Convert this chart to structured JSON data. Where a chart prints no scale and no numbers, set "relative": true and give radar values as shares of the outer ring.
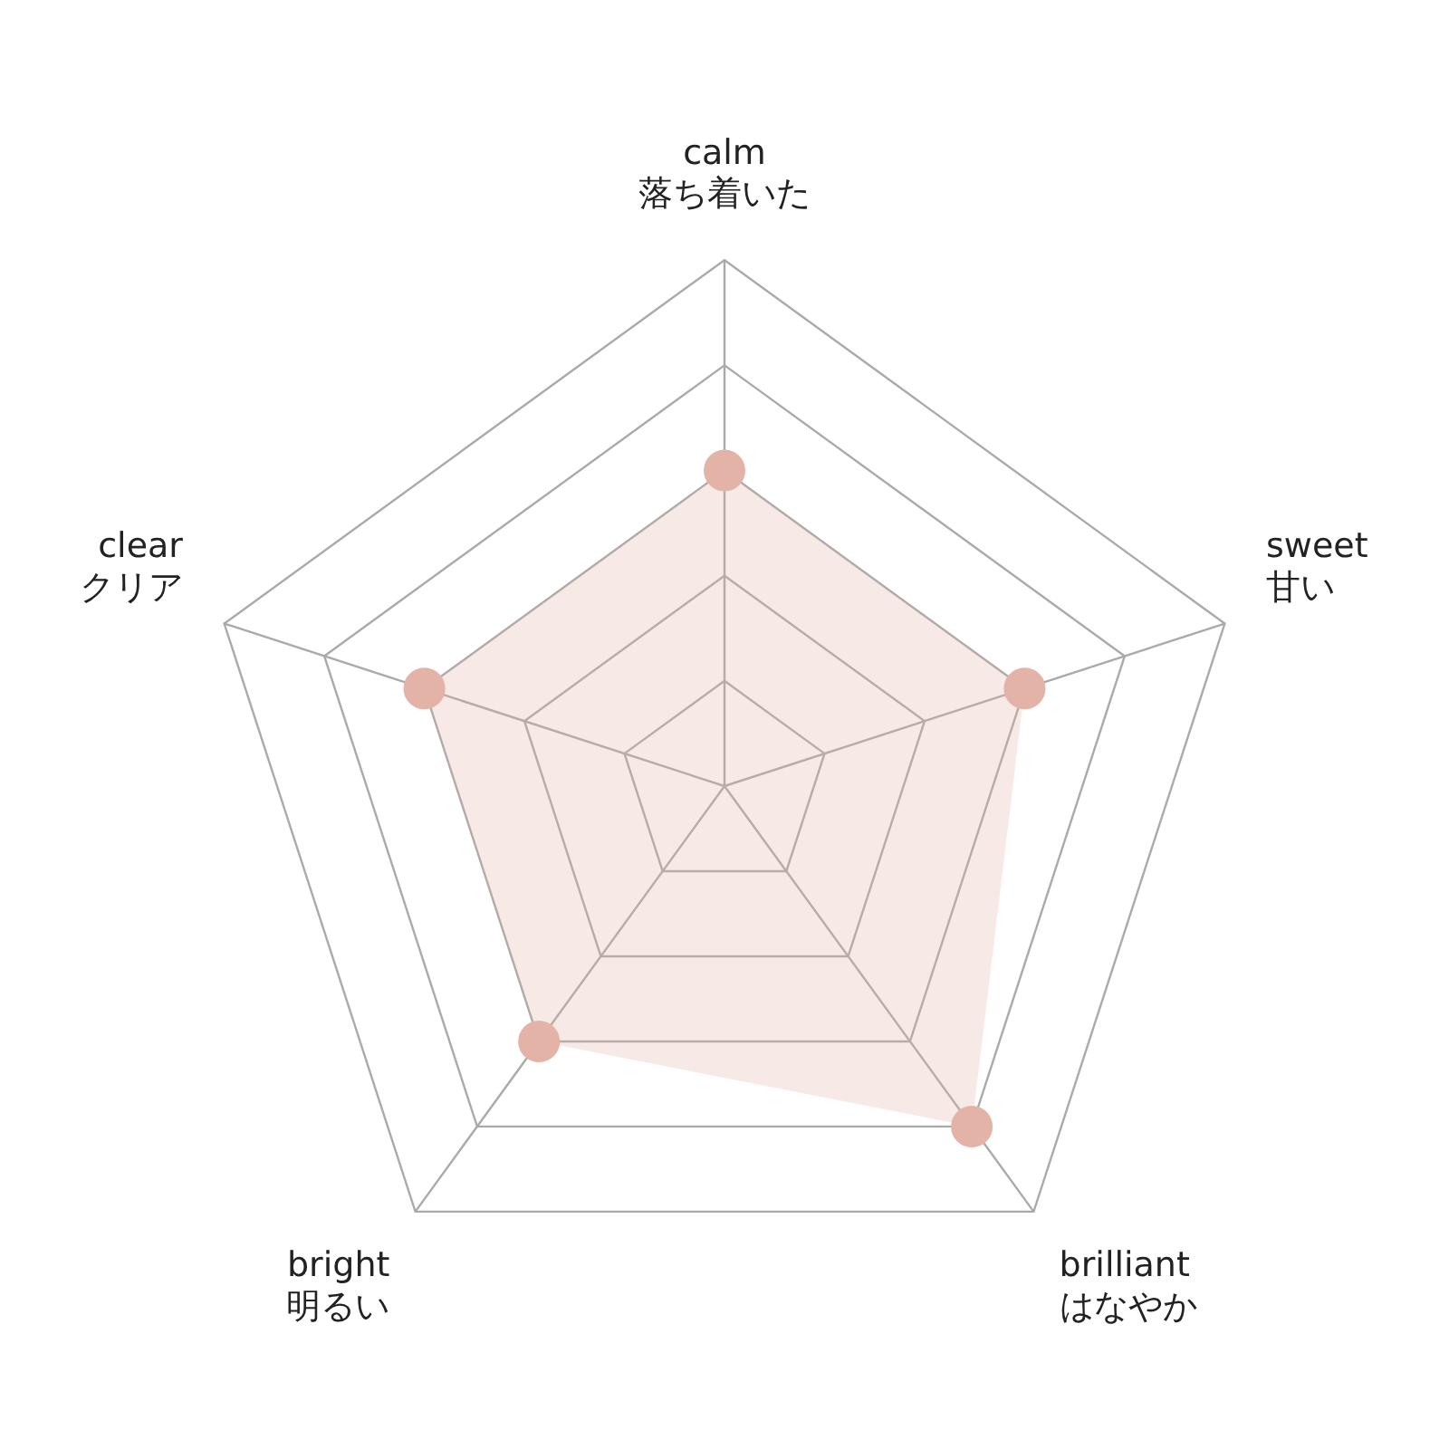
{
  "chart_data": {
    "type": "radar",
    "relative": true,
    "categories": [
      "calm\n落ち着いた",
      "sweet\n甘い",
      "brilliant\nはなやか",
      "bright\n明るい",
      "clear\nクリア"
    ],
    "series": [
      {
        "color": "#e2b3a6",
        "values": [
          0.6,
          0.6,
          0.8,
          0.6,
          0.6
        ]
      }
    ],
    "marker": "circle",
    "legend": false
  }
}
